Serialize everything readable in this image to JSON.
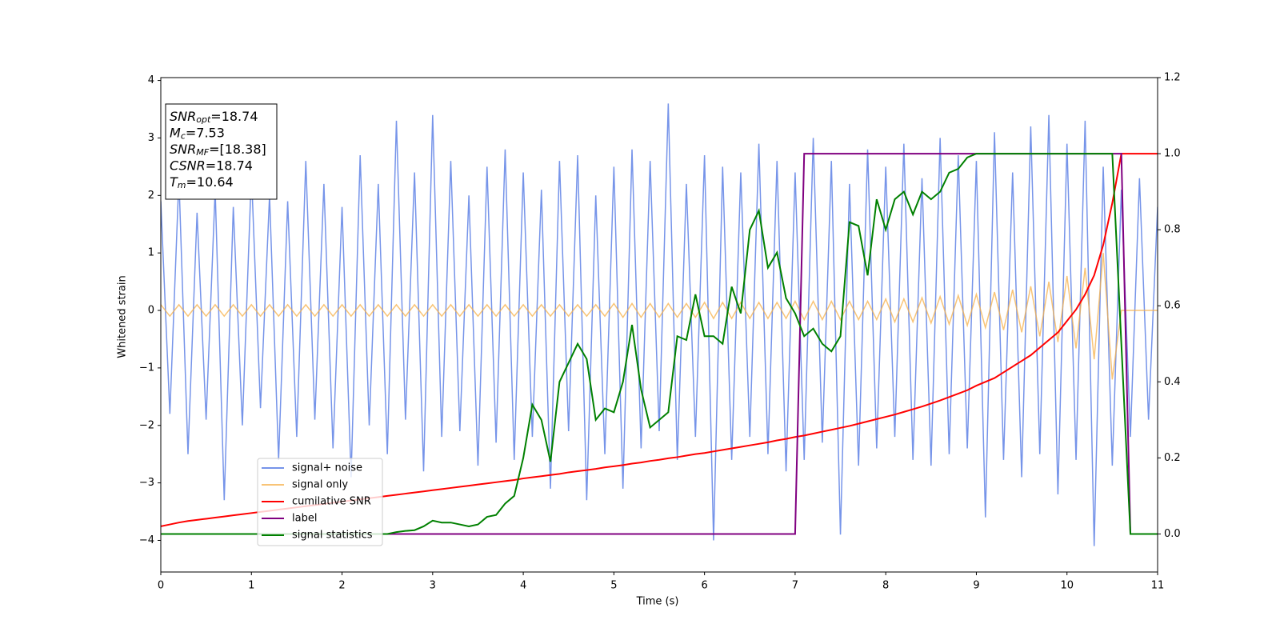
{
  "chart_data": {
    "type": "line",
    "xlabel": "Time (s)",
    "ylabel": "Whitened strain",
    "xlim": [
      0,
      11
    ],
    "xticks": [
      0,
      1,
      2,
      3,
      4,
      5,
      6,
      7,
      8,
      9,
      10,
      11
    ],
    "ylim": [
      -4.55,
      4.05
    ],
    "yticks": [
      {
        "value": -4,
        "label": "−4"
      },
      {
        "value": -3,
        "label": "−3"
      },
      {
        "value": -2,
        "label": "−2"
      },
      {
        "value": -1,
        "label": "−1"
      },
      0,
      1,
      2,
      3,
      4
    ],
    "y2lim": [
      -0.1,
      1.2
    ],
    "y2ticks": [
      {
        "value": 0,
        "label": "0.0"
      },
      0.2,
      0.4,
      0.6,
      0.8,
      {
        "value": 1,
        "label": "1.0"
      },
      1.2
    ],
    "legend": "lower left",
    "annotation": [
      {
        "var": "SNR",
        "sub": "opt",
        "text": "=18.74"
      },
      {
        "var": "M",
        "sub": "c",
        "text": "=7.53"
      },
      {
        "var": "SNR",
        "sub": "MF",
        "text": "=[18.38]"
      },
      {
        "var": "CSNR",
        "sub": "",
        "text": "=18.74"
      },
      {
        "var": "T",
        "sub": "m",
        "text": "=10.64"
      }
    ],
    "x": [
      0,
      0.1,
      0.2,
      0.3,
      0.4,
      0.5,
      0.6,
      0.7,
      0.8,
      0.9,
      1,
      1.1,
      1.2,
      1.3,
      1.4,
      1.5,
      1.6,
      1.7,
      1.8,
      1.9,
      2,
      2.1,
      2.2,
      2.3,
      2.4,
      2.5,
      2.6,
      2.7,
      2.8,
      2.9,
      3,
      3.1,
      3.2,
      3.3,
      3.4,
      3.5,
      3.6,
      3.7,
      3.8,
      3.9,
      4,
      4.1,
      4.2,
      4.3,
      4.4,
      4.5,
      4.6,
      4.7,
      4.8,
      4.9,
      5,
      5.1,
      5.2,
      5.3,
      5.4,
      5.5,
      5.6,
      5.7,
      5.8,
      5.9,
      6,
      6.1,
      6.2,
      6.3,
      6.4,
      6.5,
      6.6,
      6.7,
      6.8,
      6.9,
      7,
      7.1,
      7.2,
      7.3,
      7.4,
      7.5,
      7.6,
      7.7,
      7.8,
      7.9,
      8,
      8.1,
      8.2,
      8.3,
      8.4,
      8.5,
      8.6,
      8.7,
      8.8,
      8.9,
      9,
      9.1,
      9.2,
      9.3,
      9.4,
      9.5,
      9.6,
      9.7,
      9.8,
      9.9,
      10,
      10.1,
      10.2,
      10.3,
      10.4,
      10.5,
      10.6,
      10.7,
      10.8,
      10.9,
      11
    ],
    "series": [
      {
        "name": "signal+ noise",
        "color": "#6f8ee8",
        "opacity": 0.95,
        "values": [
          1.9,
          -1.8,
          2.3,
          -2.5,
          1.7,
          -1.9,
          2.1,
          -3.3,
          1.8,
          -2.0,
          2.4,
          -1.7,
          2.0,
          -2.6,
          1.9,
          -2.2,
          2.6,
          -1.9,
          2.2,
          -2.4,
          1.8,
          -2.9,
          2.7,
          -2.0,
          2.2,
          -2.5,
          3.3,
          -1.9,
          2.4,
          -2.8,
          3.4,
          -2.2,
          2.6,
          -2.1,
          2.0,
          -2.7,
          2.5,
          -2.3,
          2.8,
          -2.6,
          2.4,
          -2.2,
          2.1,
          -3.1,
          2.6,
          -2.1,
          2.7,
          -3.3,
          2.0,
          -2.5,
          2.5,
          -3.1,
          2.8,
          -2.4,
          2.6,
          -2.1,
          3.6,
          -2.6,
          2.2,
          -2.2,
          2.7,
          -4.0,
          2.5,
          -2.6,
          2.4,
          -2.2,
          2.9,
          -2.5,
          2.6,
          -2.8,
          2.4,
          -2.6,
          3.0,
          -2.3,
          2.6,
          -3.9,
          2.2,
          -2.7,
          2.8,
          -2.4,
          2.5,
          -2.2,
          2.9,
          -2.6,
          2.3,
          -2.7,
          3.0,
          -2.5,
          2.7,
          -2.4,
          2.6,
          -3.6,
          3.1,
          -2.6,
          2.4,
          -2.9,
          3.2,
          -2.5,
          3.4,
          -3.2,
          2.9,
          -2.6,
          3.3,
          -4.1,
          2.5,
          -2.7,
          2.1,
          -2.2,
          2.3,
          -1.9,
          1.8
        ]
      },
      {
        "name": "signal only",
        "color": "#f5b04a",
        "opacity": 0.75,
        "values": [
          0.1,
          -0.1,
          0.1,
          -0.1,
          0.1,
          -0.1,
          0.1,
          -0.1,
          0.1,
          -0.1,
          0.1,
          -0.1,
          0.1,
          -0.1,
          0.1,
          -0.1,
          0.1,
          -0.1,
          0.1,
          -0.1,
          0.1,
          -0.1,
          0.1,
          -0.1,
          0.1,
          -0.1,
          0.1,
          -0.1,
          0.1,
          -0.1,
          0.1,
          -0.1,
          0.1,
          -0.1,
          0.1,
          -0.1,
          0.1,
          -0.1,
          0.1,
          -0.1,
          0.1,
          -0.1,
          0.1,
          -0.1,
          0.1,
          -0.1,
          0.1,
          -0.1,
          0.1,
          -0.1,
          0.12,
          -0.12,
          0.12,
          -0.12,
          0.12,
          -0.12,
          0.12,
          -0.12,
          0.12,
          -0.12,
          0.14,
          -0.14,
          0.14,
          -0.14,
          0.14,
          -0.14,
          0.14,
          -0.14,
          0.14,
          -0.14,
          0.16,
          -0.16,
          0.16,
          -0.16,
          0.16,
          -0.16,
          0.16,
          -0.16,
          0.16,
          -0.16,
          0.2,
          -0.2,
          0.2,
          -0.2,
          0.22,
          -0.22,
          0.24,
          -0.24,
          0.26,
          -0.26,
          0.28,
          -0.3,
          0.32,
          -0.34,
          0.36,
          -0.38,
          0.42,
          -0.45,
          0.5,
          -0.55,
          0.6,
          -0.66,
          0.74,
          -0.85,
          1.0,
          -1.2,
          0,
          0,
          0,
          0,
          0
        ]
      },
      {
        "name": "cumilative SNR",
        "color": "#ff0000",
        "axis": "y2",
        "values": [
          0.02,
          0.025,
          0.03,
          0.034,
          0.037,
          0.04,
          0.043,
          0.046,
          0.049,
          0.052,
          0.055,
          0.058,
          0.061,
          0.064,
          0.067,
          0.07,
          0.073,
          0.076,
          0.079,
          0.082,
          0.085,
          0.088,
          0.091,
          0.094,
          0.097,
          0.1,
          0.103,
          0.106,
          0.109,
          0.112,
          0.115,
          0.118,
          0.121,
          0.124,
          0.127,
          0.13,
          0.133,
          0.136,
          0.139,
          0.142,
          0.146,
          0.149,
          0.152,
          0.155,
          0.158,
          0.162,
          0.165,
          0.168,
          0.171,
          0.175,
          0.178,
          0.181,
          0.185,
          0.188,
          0.192,
          0.195,
          0.199,
          0.202,
          0.206,
          0.21,
          0.213,
          0.217,
          0.221,
          0.225,
          0.229,
          0.233,
          0.237,
          0.241,
          0.246,
          0.25,
          0.255,
          0.259,
          0.264,
          0.269,
          0.274,
          0.279,
          0.284,
          0.29,
          0.296,
          0.302,
          0.308,
          0.314,
          0.321,
          0.328,
          0.335,
          0.343,
          0.351,
          0.36,
          0.369,
          0.378,
          0.39,
          0.4,
          0.41,
          0.425,
          0.44,
          0.455,
          0.47,
          0.49,
          0.51,
          0.53,
          0.56,
          0.59,
          0.63,
          0.68,
          0.76,
          0.87,
          1.0,
          1.0,
          1.0,
          1.0,
          1.0
        ]
      },
      {
        "name": "label",
        "color": "#800080",
        "axis": "y2",
        "values": [
          0,
          0,
          0,
          0,
          0,
          0,
          0,
          0,
          0,
          0,
          0,
          0,
          0,
          0,
          0,
          0,
          0,
          0,
          0,
          0,
          0,
          0,
          0,
          0,
          0,
          0,
          0,
          0,
          0,
          0,
          0,
          0,
          0,
          0,
          0,
          0,
          0,
          0,
          0,
          0,
          0,
          0,
          0,
          0,
          0,
          0,
          0,
          0,
          0,
          0,
          0,
          0,
          0,
          0,
          0,
          0,
          0,
          0,
          0,
          0,
          0,
          0,
          0,
          0,
          0,
          0,
          0,
          0,
          0,
          0,
          0,
          1,
          1,
          1,
          1,
          1,
          1,
          1,
          1,
          1,
          1,
          1,
          1,
          1,
          1,
          1,
          1,
          1,
          1,
          1,
          1,
          1,
          1,
          1,
          1,
          1,
          1,
          1,
          1,
          1,
          1,
          1,
          1,
          1,
          1,
          1,
          1,
          0,
          0,
          0,
          0
        ]
      },
      {
        "name": "signal statistics",
        "color": "#008000",
        "axis": "y2",
        "values": [
          0,
          0,
          0,
          0,
          0,
          0,
          0,
          0,
          0,
          0,
          0,
          0,
          0,
          0,
          0,
          0,
          0,
          0,
          0,
          0,
          0,
          0,
          0,
          0,
          0,
          0,
          0.005,
          0.008,
          0.01,
          0.02,
          0.035,
          0.03,
          0.03,
          0.025,
          0.02,
          0.025,
          0.045,
          0.05,
          0.08,
          0.1,
          0.2,
          0.34,
          0.3,
          0.19,
          0.4,
          0.45,
          0.5,
          0.46,
          0.3,
          0.33,
          0.32,
          0.4,
          0.55,
          0.38,
          0.28,
          0.3,
          0.32,
          0.52,
          0.51,
          0.63,
          0.52,
          0.52,
          0.5,
          0.65,
          0.58,
          0.8,
          0.85,
          0.7,
          0.74,
          0.62,
          0.58,
          0.52,
          0.54,
          0.5,
          0.48,
          0.52,
          0.82,
          0.81,
          0.68,
          0.88,
          0.8,
          0.88,
          0.9,
          0.84,
          0.9,
          0.88,
          0.9,
          0.95,
          0.96,
          0.99,
          1,
          1,
          1,
          1,
          1,
          1,
          1,
          1,
          1,
          1,
          1,
          1,
          1,
          1,
          1,
          1,
          0.5,
          0,
          0,
          0,
          0
        ]
      }
    ]
  }
}
